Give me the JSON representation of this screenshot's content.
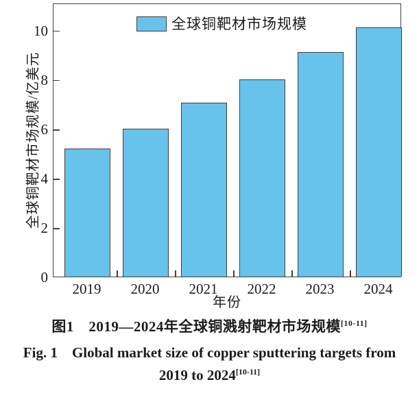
{
  "figure": {
    "legend_label": "全球铜靶材市场规模",
    "y_axis_label": "全球铜靶材市场规模/亿美元",
    "x_axis_label": "年份",
    "caption_zh": "图1　2019—2024年全球铜溅射靶材市场规模",
    "caption_zh_sup": "[10-11]",
    "caption_en_line1": "Fig. 1　Global market size of copper sputtering targets from",
    "caption_en_line2": "2019 to 2024",
    "caption_en_sup": "[10-11]"
  },
  "chart_data": {
    "type": "bar",
    "title": "",
    "categories": [
      "2019",
      "2020",
      "2021",
      "2022",
      "2023",
      "2024"
    ],
    "values": [
      5.2,
      6.0,
      7.05,
      8.0,
      9.1,
      10.1
    ],
    "series_name": "全球铜靶材市场规模",
    "xlabel": "年份",
    "ylabel": "全球铜靶材市场规模/亿美元",
    "ylim": [
      0,
      11.1
    ],
    "yticks": [
      0,
      2,
      4,
      6,
      8,
      10
    ],
    "grid": false,
    "legend_position": "upper-left",
    "bar_color": "#68c3ec",
    "bar_border_color": "#3e3e3e",
    "axis_color": "#3f3f3f"
  }
}
